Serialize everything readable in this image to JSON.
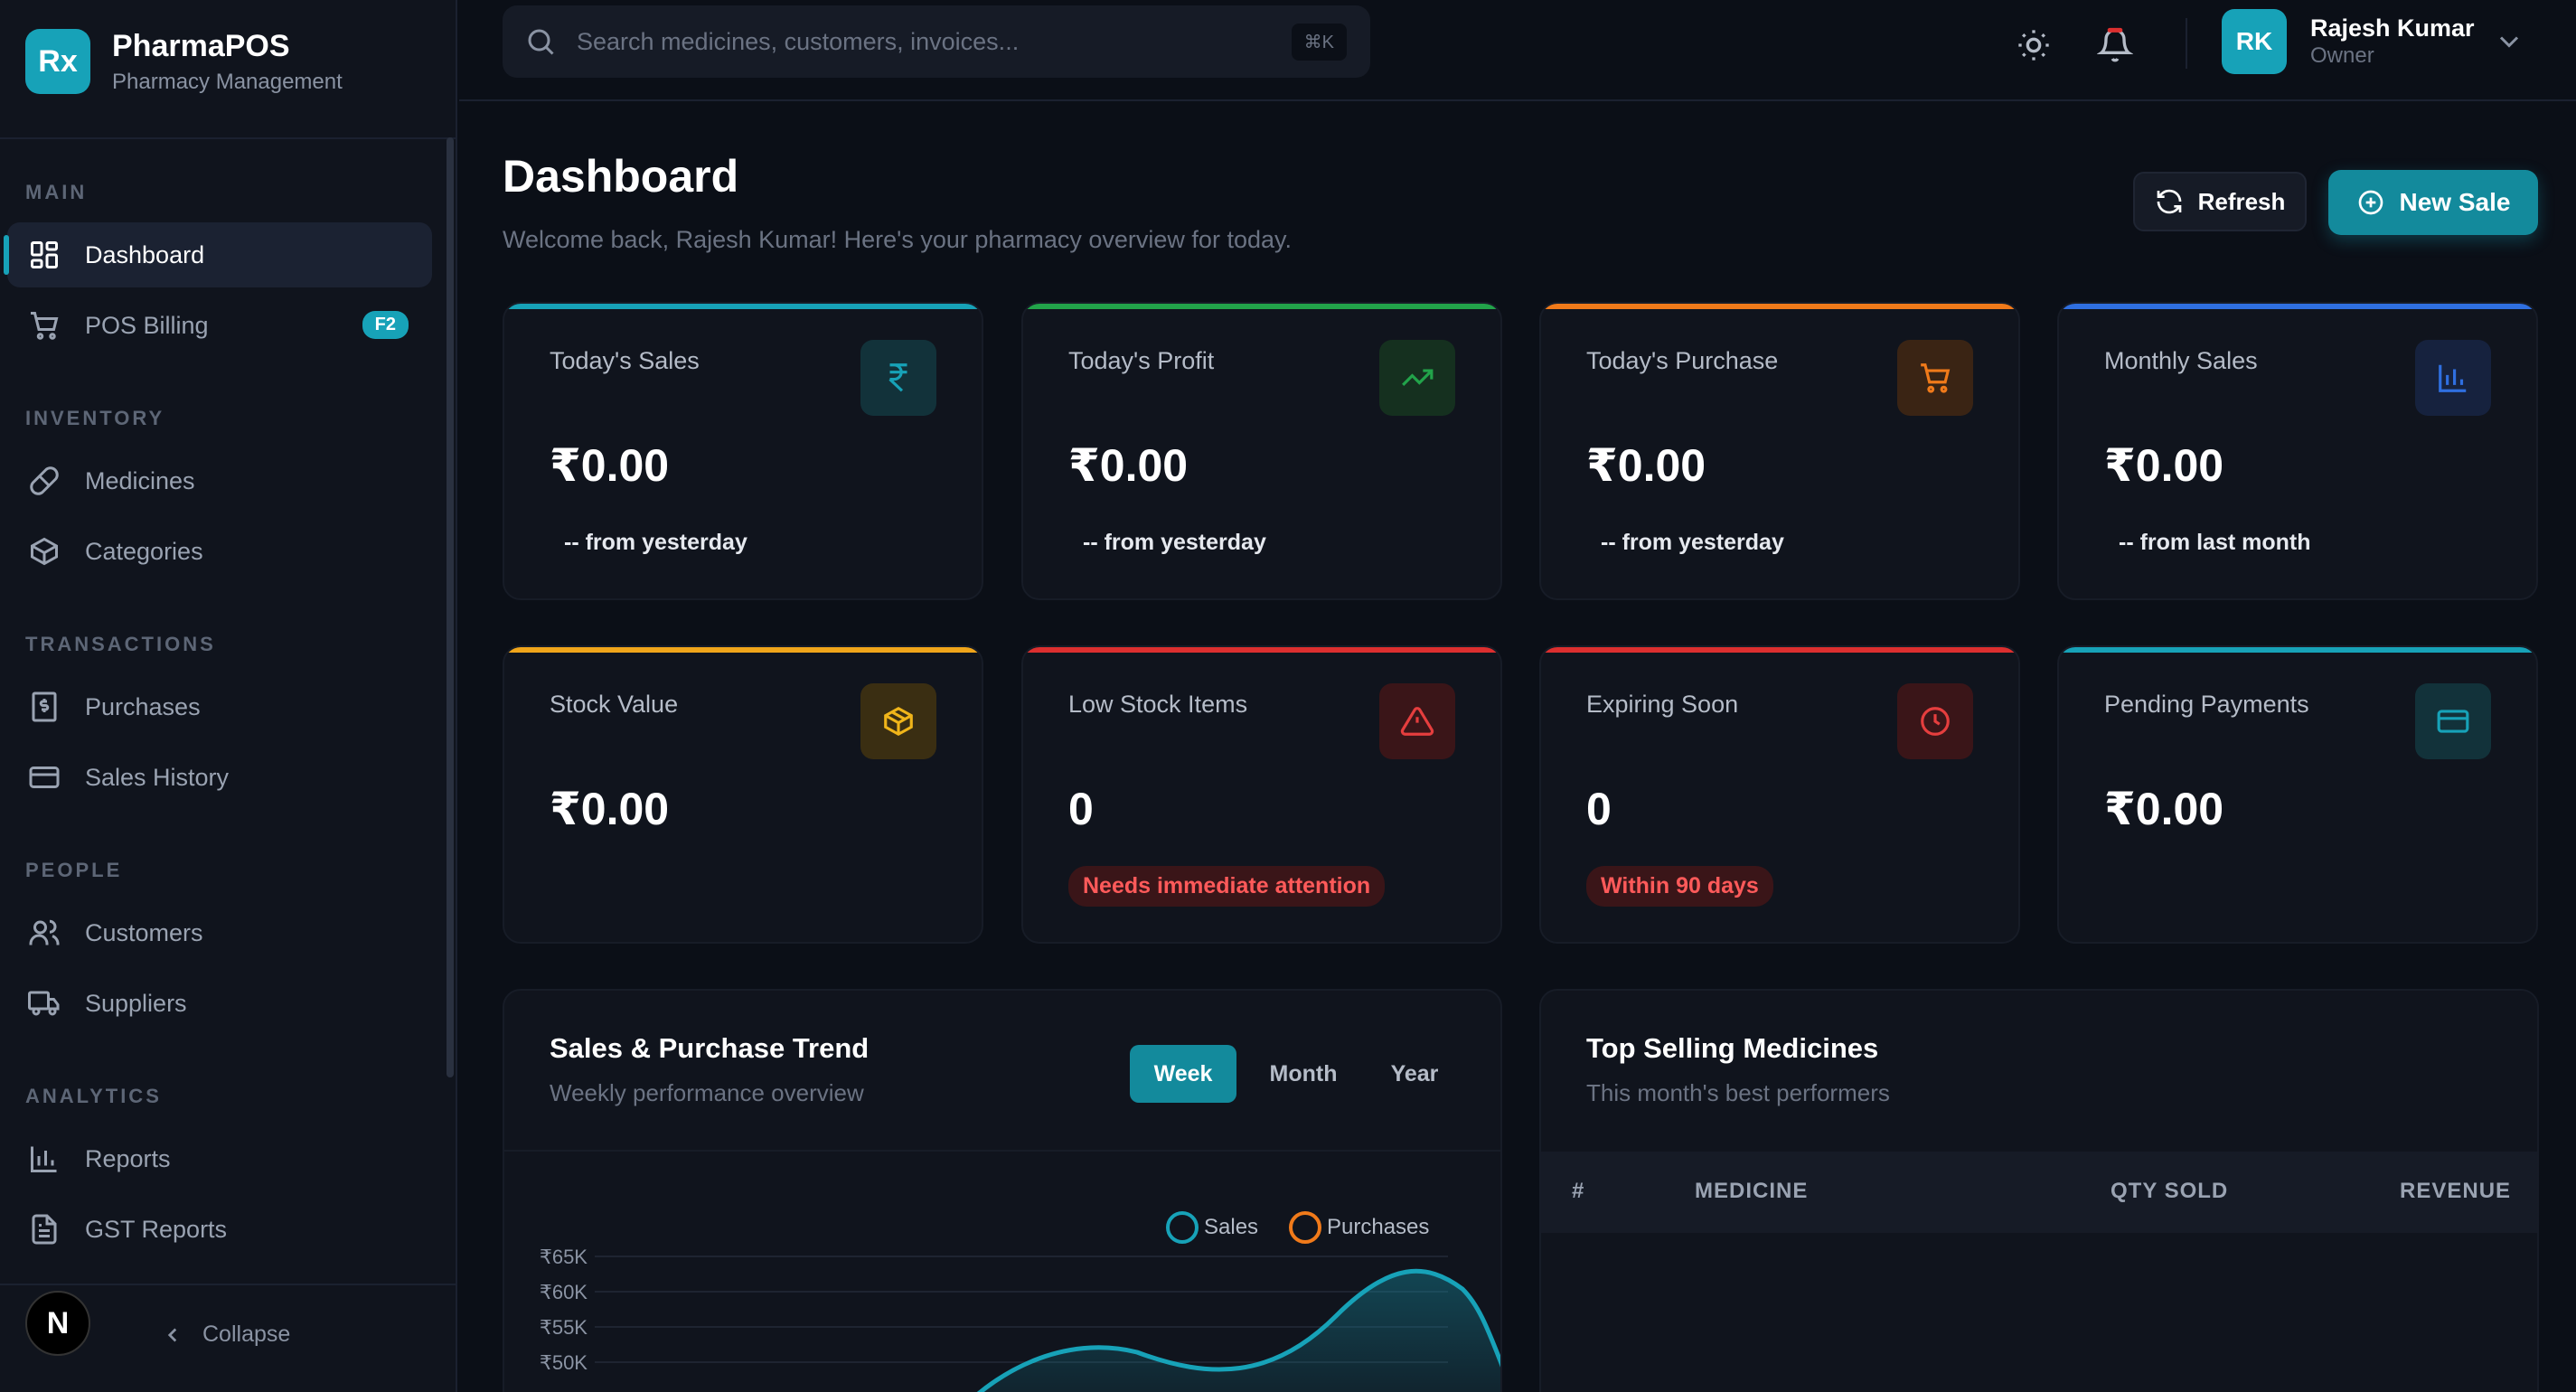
{
  "brand": {
    "logo": "Rx",
    "name": "PharmaPOS",
    "subtitle": "Pharmacy Management"
  },
  "sidebar": {
    "sections": [
      {
        "title": "MAIN"
      },
      {
        "title": "INVENTORY"
      },
      {
        "title": "TRANSACTIONS"
      },
      {
        "title": "PEOPLE"
      },
      {
        "title": "ANALYTICS"
      }
    ],
    "items": [
      {
        "label": "Dashboard",
        "icon": "dashboard-icon",
        "active": true
      },
      {
        "label": "POS Billing",
        "icon": "cart-icon",
        "badge": "F2"
      },
      {
        "label": "Medicines",
        "icon": "pill-icon"
      },
      {
        "label": "Categories",
        "icon": "box-icon"
      },
      {
        "label": "Purchases",
        "icon": "receipt-icon"
      },
      {
        "label": "Sales History",
        "icon": "card-icon"
      },
      {
        "label": "Customers",
        "icon": "users-icon"
      },
      {
        "label": "Suppliers",
        "icon": "truck-icon"
      },
      {
        "label": "Reports",
        "icon": "bar-chart-icon"
      },
      {
        "label": "GST Reports",
        "icon": "document-icon"
      }
    ],
    "footer_avatar": "N",
    "collapse_label": "Collapse"
  },
  "topbar": {
    "search_placeholder": "Search medicines, customers, invoices...",
    "shortcut": "⌘K",
    "user": {
      "initials": "RK",
      "name": "Rajesh Kumar",
      "role": "Owner"
    }
  },
  "header": {
    "title": "Dashboard",
    "subtitle": "Welcome back, Rajesh Kumar! Here's your pharmacy overview for today.",
    "refresh_label": "Refresh",
    "new_sale_label": "New Sale"
  },
  "stats": [
    {
      "label": "Today's Sales",
      "value": "₹0.00",
      "foot": "-- from yesterday",
      "accent": "#17a2b8",
      "icon": "rupee-icon"
    },
    {
      "label": "Today's Profit",
      "value": "₹0.00",
      "foot": "-- from yesterday",
      "accent": "#22a34a",
      "icon": "trending-up-icon"
    },
    {
      "label": "Today's Purchase",
      "value": "₹0.00",
      "foot": "-- from yesterday",
      "accent": "#f07a1a",
      "icon": "cart-icon"
    },
    {
      "label": "Monthly Sales",
      "value": "₹0.00",
      "foot": "-- from last month",
      "accent": "#2f6fe0",
      "icon": "bar-chart-icon"
    },
    {
      "label": "Stock Value",
      "value": "₹0.00",
      "accent": "#f0a51a",
      "icon": "package-icon"
    },
    {
      "label": "Low Stock Items",
      "value": "0",
      "pill": "Needs immediate attention",
      "accent": "#dc2f2f",
      "icon": "warning-icon"
    },
    {
      "label": "Expiring Soon",
      "value": "0",
      "pill": "Within 90 days",
      "accent": "#dc2f2f",
      "icon": "clock-icon"
    },
    {
      "label": "Pending Payments",
      "value": "₹0.00",
      "accent": "#17a2b8",
      "icon": "credit-card-icon"
    }
  ],
  "trend": {
    "title": "Sales & Purchase Trend",
    "subtitle": "Weekly performance overview",
    "tabs": [
      "Week",
      "Month",
      "Year"
    ],
    "active_tab": "Week",
    "legend": [
      "Sales",
      "Purchases"
    ],
    "chart_data": {
      "type": "area",
      "title": "Sales & Purchase Trend",
      "series": [
        {
          "name": "Sales",
          "color": "#17a2b8"
        },
        {
          "name": "Purchases",
          "color": "#f07a1a"
        }
      ],
      "y_ticks": [
        "₹65K",
        "₹60K",
        "₹55K",
        "₹50K"
      ],
      "ylim": [
        45000,
        65000
      ]
    }
  },
  "top_selling": {
    "title": "Top Selling Medicines",
    "subtitle": "This month's best performers",
    "columns": [
      "#",
      "MEDICINE",
      "QTY SOLD",
      "REVENUE"
    ]
  }
}
